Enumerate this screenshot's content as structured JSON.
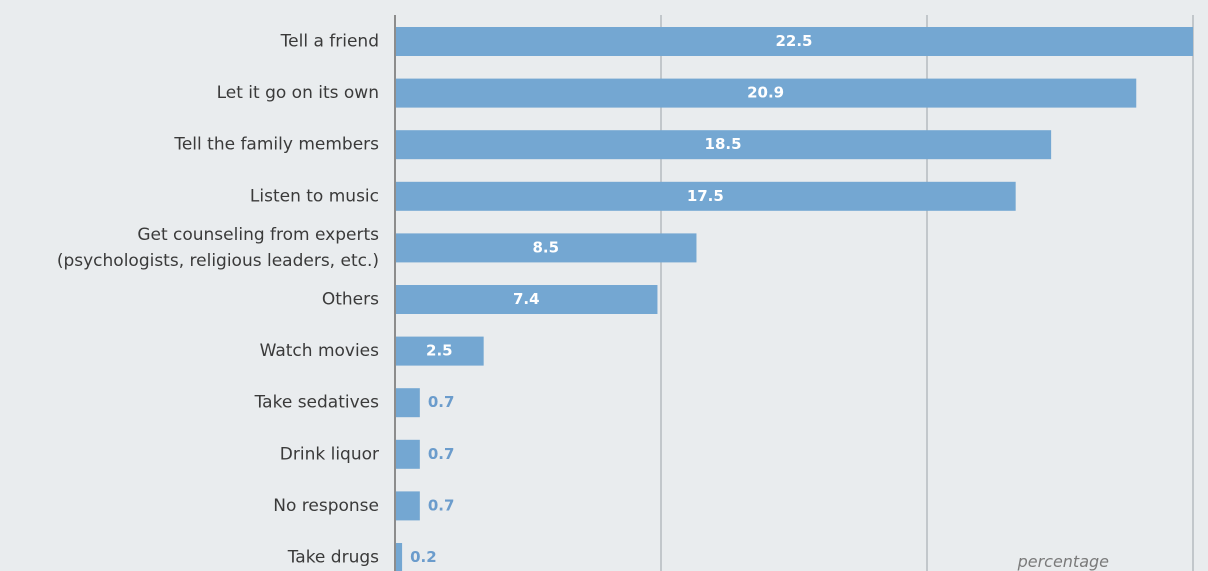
{
  "chart_data": {
    "type": "bar",
    "orientation": "horizontal",
    "categories": [
      [
        "Tell a friend"
      ],
      [
        "Let it go on its own"
      ],
      [
        "Tell the family members"
      ],
      [
        "Listen to music"
      ],
      [
        "Get  counseling from  experts",
        "(psychologists, religious leaders, etc.)"
      ],
      [
        "Others"
      ],
      [
        "Watch movies"
      ],
      [
        "Take sedatives"
      ],
      [
        "Drink liquor"
      ],
      [
        "No response"
      ],
      [
        "Take drugs"
      ]
    ],
    "values": [
      22.5,
      20.9,
      18.5,
      17.5,
      8.5,
      7.4,
      2.5,
      0.7,
      0.7,
      0.7,
      0.2
    ],
    "value_labels": [
      "22.5",
      "20.9",
      "18.5",
      "17.5",
      "8.5",
      "7.4",
      "2.5",
      "0.7",
      "0.7",
      "0.7",
      "0.2"
    ],
    "xlim": [
      0,
      22.5
    ],
    "gridlines": [
      7.5,
      15,
      22.5
    ],
    "unit_label": "percentage",
    "grid": true,
    "colors": {
      "bar": "#74a7d2",
      "value_inside": "#ffffff",
      "value_outside": "#6b9ccc",
      "axis": "#8c8c8c",
      "grid": "#c2c7cb",
      "background": "#e9ecee"
    }
  }
}
